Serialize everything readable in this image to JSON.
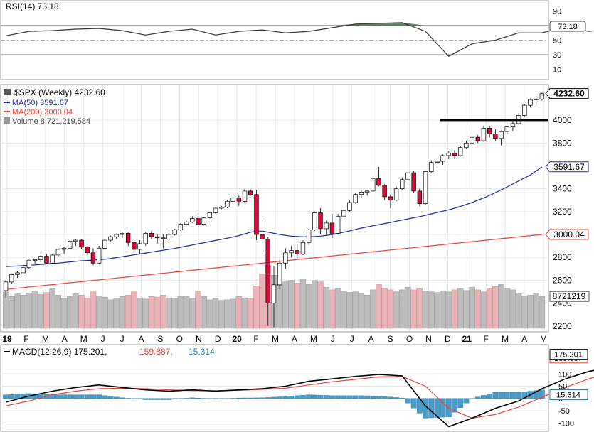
{
  "colors": {
    "up": "#ffffff",
    "down": "#d0103a",
    "candle_stroke": "#000000",
    "ma50": "#1a2a9c",
    "ma200": "#e8403a",
    "volume_up": "#bdbdbd",
    "volume_down": "#e8b4b8",
    "rsi_line": "#333333",
    "rsi_fill": "#3c7a3c",
    "macd_line": "#000000",
    "macd_signal": "#e8403a",
    "macd_hist": "#4a9cc8",
    "grid": "#e6e6e6",
    "label_box": "#ffffff"
  },
  "chart_data": [
    {
      "type": "line",
      "panel": "rsi",
      "title": "RSI(14) 73.18",
      "y_ticks": [
        "90",
        "70",
        "50",
        "30",
        "10"
      ],
      "ylim": [
        0,
        100
      ],
      "reference_lines": [
        70,
        50,
        30
      ],
      "last_label": "73.18",
      "x": [
        0,
        4,
        8,
        12,
        16,
        20,
        24,
        28,
        32,
        36,
        40,
        44,
        48,
        52,
        56,
        60,
        64,
        68,
        72,
        76,
        80,
        84,
        88,
        92,
        96,
        100,
        104,
        108,
        112,
        116,
        120,
        124
      ],
      "values": [
        56,
        62,
        63,
        65,
        66,
        63,
        57,
        62,
        65,
        57,
        62,
        64,
        60,
        62,
        67,
        72,
        73,
        74,
        62,
        28,
        45,
        50,
        60,
        60,
        68,
        62,
        65,
        70,
        66,
        72,
        67,
        73
      ]
    },
    {
      "type": "candlestick",
      "panel": "price",
      "title": "$SPX (Weekly) 4232.60",
      "legend": [
        {
          "label": "MA(50) 3591.67",
          "color": "#1a2a9c"
        },
        {
          "label": "MA(200) 3000.04",
          "color": "#e8403a"
        },
        {
          "label": "Volume 8,721,219,584",
          "color": "#555555"
        }
      ],
      "y_ticks": [
        "4000",
        "3800",
        "3600",
        "3400",
        "3200",
        "3000",
        "2800",
        "2600",
        "2400",
        "2200"
      ],
      "ylim": [
        2180,
        4280
      ],
      "x_labels": [
        "19",
        "F",
        "M",
        "A",
        "M",
        "J",
        "J",
        "A",
        "S",
        "O",
        "N",
        "D",
        "20",
        "F",
        "M",
        "A",
        "M",
        "J",
        "J",
        "A",
        "S",
        "O",
        "N",
        "D",
        "21",
        "F",
        "M",
        "A",
        "M"
      ],
      "bold_x_labels": [
        "19",
        "20",
        "21"
      ],
      "price_labels": {
        "last": "4232.60",
        "ma50": "3591.67",
        "ma200": "3000.04",
        "volume": "8721219"
      },
      "resistance_level": 4000,
      "ohlc": [
        [
          2510,
          2600,
          2445,
          2585
        ],
        [
          2585,
          2660,
          2570,
          2650
        ],
        [
          2650,
          2680,
          2620,
          2665
        ],
        [
          2665,
          2720,
          2650,
          2710
        ],
        [
          2710,
          2780,
          2700,
          2775
        ],
        [
          2775,
          2790,
          2740,
          2780
        ],
        [
          2780,
          2820,
          2760,
          2810
        ],
        [
          2810,
          2830,
          2740,
          2750
        ],
        [
          2750,
          2830,
          2740,
          2820
        ],
        [
          2820,
          2880,
          2810,
          2870
        ],
        [
          2870,
          2890,
          2830,
          2880
        ],
        [
          2880,
          2950,
          2870,
          2940
        ],
        [
          2940,
          2960,
          2900,
          2950
        ],
        [
          2950,
          2960,
          2870,
          2890
        ],
        [
          2890,
          2900,
          2820,
          2840
        ],
        [
          2840,
          2880,
          2730,
          2750
        ],
        [
          2750,
          2900,
          2740,
          2880
        ],
        [
          2880,
          2960,
          2870,
          2950
        ],
        [
          2950,
          2990,
          2940,
          2980
        ],
        [
          2980,
          3010,
          2960,
          3000
        ],
        [
          3000,
          3020,
          2970,
          3010
        ],
        [
          3010,
          3020,
          2900,
          2930
        ],
        [
          2930,
          2960,
          2840,
          2870
        ],
        [
          2870,
          2950,
          2830,
          2920
        ],
        [
          2920,
          3020,
          2900,
          3010
        ],
        [
          3010,
          3030,
          2960,
          2980
        ],
        [
          2980,
          3000,
          2920,
          2970
        ],
        [
          2970,
          3000,
          2880,
          2960
        ],
        [
          2960,
          3020,
          2950,
          3000
        ],
        [
          3000,
          3050,
          2990,
          3040
        ],
        [
          3040,
          3100,
          3030,
          3090
        ],
        [
          3090,
          3120,
          3080,
          3110
        ],
        [
          3110,
          3160,
          3100,
          3140
        ],
        [
          3140,
          3170,
          3070,
          3090
        ],
        [
          3090,
          3150,
          3080,
          3145
        ],
        [
          3145,
          3200,
          3140,
          3190
        ],
        [
          3190,
          3240,
          3180,
          3230
        ],
        [
          3230,
          3250,
          3220,
          3240
        ],
        [
          3240,
          3300,
          3230,
          3290
        ],
        [
          3290,
          3340,
          3280,
          3320
        ],
        [
          3320,
          3340,
          3250,
          3290
        ],
        [
          3290,
          3400,
          3280,
          3380
        ],
        [
          3380,
          3395,
          3340,
          3350
        ],
        [
          3350,
          3390,
          2950,
          3000
        ],
        [
          3000,
          3130,
          2850,
          2960
        ],
        [
          2960,
          2980,
          2200,
          2400
        ],
        [
          2400,
          2720,
          2190,
          2560
        ],
        [
          2560,
          2780,
          2520,
          2750
        ],
        [
          2750,
          2880,
          2700,
          2840
        ],
        [
          2840,
          2900,
          2800,
          2860
        ],
        [
          2860,
          2920,
          2790,
          2830
        ],
        [
          2830,
          2950,
          2820,
          2930
        ],
        [
          2930,
          3050,
          2910,
          3040
        ],
        [
          3040,
          3200,
          3030,
          3190
        ],
        [
          3190,
          3230,
          3000,
          3050
        ],
        [
          3050,
          3120,
          2990,
          3100
        ],
        [
          3100,
          3180,
          2970,
          3010
        ],
        [
          3010,
          3180,
          3000,
          3160
        ],
        [
          3160,
          3220,
          3150,
          3210
        ],
        [
          3210,
          3300,
          3200,
          3280
        ],
        [
          3280,
          3360,
          3270,
          3350
        ],
        [
          3350,
          3390,
          3320,
          3370
        ],
        [
          3370,
          3390,
          3340,
          3380
        ],
        [
          3380,
          3500,
          3370,
          3490
        ],
        [
          3490,
          3590,
          3420,
          3430
        ],
        [
          3430,
          3440,
          3300,
          3330
        ],
        [
          3330,
          3350,
          3230,
          3300
        ],
        [
          3300,
          3420,
          3290,
          3400
        ],
        [
          3400,
          3500,
          3390,
          3480
        ],
        [
          3480,
          3560,
          3450,
          3540
        ],
        [
          3540,
          3560,
          3360,
          3380
        ],
        [
          3380,
          3400,
          3250,
          3270
        ],
        [
          3270,
          3560,
          3260,
          3550
        ],
        [
          3550,
          3650,
          3540,
          3630
        ],
        [
          3630,
          3660,
          3600,
          3640
        ],
        [
          3640,
          3700,
          3610,
          3690
        ],
        [
          3690,
          3730,
          3660,
          3710
        ],
        [
          3710,
          3740,
          3660,
          3690
        ],
        [
          3690,
          3770,
          3680,
          3760
        ],
        [
          3760,
          3820,
          3750,
          3800
        ],
        [
          3800,
          3860,
          3790,
          3850
        ],
        [
          3850,
          3870,
          3800,
          3820
        ],
        [
          3820,
          3950,
          3810,
          3930
        ],
        [
          3930,
          3950,
          3850,
          3880
        ],
        [
          3880,
          3920,
          3820,
          3840
        ],
        [
          3840,
          3910,
          3780,
          3900
        ],
        [
          3900,
          3950,
          3880,
          3940
        ],
        [
          3940,
          3990,
          3900,
          3970
        ],
        [
          3970,
          4060,
          3960,
          4040
        ],
        [
          4040,
          4140,
          4030,
          4130
        ],
        [
          4130,
          4190,
          4110,
          4180
        ],
        [
          4180,
          4210,
          4130,
          4185
        ],
        [
          4185,
          4240,
          4170,
          4232
        ]
      ],
      "ma50": [
        2720,
        2722,
        2725,
        2728,
        2731,
        2734,
        2738,
        2742,
        2746,
        2750,
        2755,
        2760,
        2765,
        2770,
        2773,
        2776,
        2780,
        2784,
        2790,
        2798,
        2806,
        2814,
        2822,
        2830,
        2838,
        2846,
        2854,
        2862,
        2870,
        2878,
        2888,
        2898,
        2908,
        2918,
        2928,
        2938,
        2948,
        2958,
        2968,
        2978,
        2990,
        3005,
        3020,
        3030,
        3030,
        3020,
        3010,
        3000,
        2992,
        2986,
        2982,
        2980,
        2980,
        2982,
        2986,
        2992,
        3000,
        3010,
        3020,
        3032,
        3044,
        3056,
        3066,
        3076,
        3086,
        3096,
        3106,
        3116,
        3126,
        3136,
        3146,
        3156,
        3168,
        3180,
        3192,
        3204,
        3216,
        3230,
        3246,
        3262,
        3280,
        3300,
        3320,
        3342,
        3366,
        3390,
        3416,
        3442,
        3468,
        3494,
        3520,
        3556,
        3591
      ]
    },
    {
      "type": "bar",
      "panel": "volume",
      "values": [
        5.5,
        4.8,
        5.2,
        5.0,
        5.3,
        5.6,
        5.1,
        5.4,
        6.0,
        5.0,
        4.5,
        4.8,
        5.2,
        5.0,
        4.6,
        5.5,
        4.9,
        4.7,
        4.3,
        4.5,
        4.8,
        5.0,
        5.5,
        4.6,
        4.4,
        4.8,
        4.7,
        5.0,
        4.6,
        4.5,
        4.8,
        4.9,
        4.5,
        5.6,
        4.8,
        4.3,
        4.5,
        4.2,
        4.3,
        4.4,
        4.8,
        4.6,
        4.5,
        6.4,
        8.2,
        9.5,
        8.0,
        6.5,
        7.0,
        7.2,
        6.8,
        7.4,
        6.6,
        7.2,
        7.0,
        6.2,
        5.8,
        6.0,
        5.6,
        5.4,
        5.5,
        5.2,
        5.0,
        5.8,
        6.6,
        6.0,
        5.8,
        5.5,
        5.8,
        6.2,
        5.8,
        6.0,
        5.6,
        5.5,
        5.4,
        5.6,
        5.5,
        5.8,
        6.0,
        5.7,
        6.2,
        5.8,
        5.5,
        6.0,
        6.3,
        6.6,
        6.0,
        5.8,
        5.2,
        4.9,
        5.0,
        5.3,
        4.8
      ],
      "ylim": [
        0,
        12
      ]
    },
    {
      "type": "line",
      "panel": "macd",
      "title": "MACD(12,26,9) 175.201, 159.887, 15.314",
      "legend_parts": [
        "MACD(12,26,9) 175.201",
        "159.887",
        "15.314"
      ],
      "y_ticks": [
        "100",
        "50",
        "0",
        "-50",
        "-100"
      ],
      "ylim": [
        -125,
        205
      ],
      "last_labels": {
        "macd": "175.201",
        "signal": "159.887",
        "hist": "15.314"
      },
      "x": [
        0,
        4,
        8,
        12,
        16,
        20,
        24,
        28,
        32,
        36,
        40,
        44,
        48,
        52,
        56,
        60,
        64,
        68,
        72,
        76,
        80,
        84,
        88,
        92,
        96,
        100,
        104,
        108,
        112,
        116,
        120,
        124
      ],
      "macd": [
        -15,
        10,
        30,
        45,
        55,
        45,
        35,
        30,
        35,
        30,
        35,
        40,
        50,
        70,
        80,
        90,
        98,
        92,
        -30,
        -115,
        -80,
        -40,
        -10,
        40,
        80,
        110,
        130,
        160,
        150,
        155,
        155,
        175
      ],
      "signal": [
        -30,
        -10,
        15,
        30,
        40,
        42,
        40,
        35,
        32,
        32,
        33,
        37,
        42,
        55,
        68,
        78,
        88,
        90,
        50,
        -40,
        -80,
        -65,
        -35,
        5,
        45,
        80,
        110,
        130,
        140,
        148,
        150,
        160
      ],
      "hist": [
        15,
        20,
        15,
        15,
        15,
        3,
        -5,
        -5,
        3,
        -2,
        2,
        3,
        8,
        15,
        12,
        12,
        10,
        2,
        -80,
        -75,
        0,
        25,
        25,
        35,
        35,
        30,
        20,
        30,
        10,
        7,
        5,
        15
      ]
    }
  ]
}
